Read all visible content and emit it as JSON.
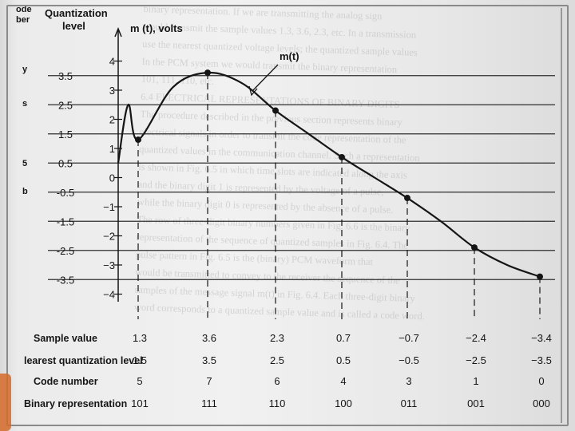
{
  "header": {
    "code_col": [
      "ode",
      "ber"
    ],
    "quant_title": [
      "Quantization",
      "level"
    ],
    "m_axis": "m (t), volts",
    "curve": "m(t)"
  },
  "left_stray": [
    "y",
    "s",
    "5",
    "b"
  ],
  "colors": {
    "ink": "#151515",
    "grid": "#2e2e2e",
    "paper": "#efefef",
    "accent": "#d66a2a"
  },
  "rows": {
    "sample": "Sample value",
    "nearest": "learest quantization level",
    "code": "Code number",
    "binary": "Binary representation"
  },
  "chart_data": {
    "type": "line",
    "quantization_levels": [
      3.5,
      2.5,
      1.5,
      0.5,
      -0.5,
      -1.5,
      -2.5,
      -3.5
    ],
    "level_labels": [
      "3.5",
      "2.5",
      "1.5",
      "0.5",
      "-0.5",
      "-1.5",
      "-2.5",
      "-3.5"
    ],
    "m_ticks": [
      4,
      3,
      2,
      1,
      0,
      -1,
      -2,
      -3,
      -4
    ],
    "m_tick_labels": [
      "4",
      "3",
      "2",
      "1",
      "0",
      "−1",
      "−2",
      "−3",
      "−4"
    ],
    "ylim": [
      -4.5,
      4.5
    ],
    "samples": [
      {
        "t": 1,
        "value": "1.3",
        "v": 1.3,
        "nearest": "1.5",
        "code": "5",
        "binary": "101"
      },
      {
        "t": 2,
        "value": "3.6",
        "v": 3.6,
        "nearest": "3.5",
        "code": "7",
        "binary": "111"
      },
      {
        "t": 3,
        "value": "2.3",
        "v": 2.3,
        "nearest": "2.5",
        "code": "6",
        "binary": "110"
      },
      {
        "t": 4,
        "value": "0.7",
        "v": 0.7,
        "nearest": "0.5",
        "code": "4",
        "binary": "100"
      },
      {
        "t": 5,
        "value": "−0.7",
        "v": -0.7,
        "nearest": "−0.5",
        "code": "3",
        "binary": "011"
      },
      {
        "t": 6,
        "value": "−2.4",
        "v": -2.4,
        "nearest": "−2.5",
        "code": "1",
        "binary": "001"
      },
      {
        "t": 7,
        "value": "−3.4",
        "v": -3.4,
        "nearest": "−3.5",
        "code": "0",
        "binary": "000"
      }
    ],
    "curve": {
      "t": [
        0,
        0.5,
        1,
        1.5,
        2,
        2.5,
        3,
        3.5,
        4,
        4.5,
        5,
        5.5,
        6,
        6.5,
        7
      ],
      "v": [
        0.5,
        2.5,
        1.3,
        3.1,
        3.6,
        3.25,
        2.3,
        1.5,
        0.7,
        0.0,
        -0.7,
        -1.5,
        -2.4,
        -3.0,
        -3.4
      ]
    }
  },
  "ghost_text": [
    "binary representation. If we are transmitting the analog sign",
    "would transmit the sample values 1.3, 3.6, 2.3, etc. In a transmission",
    "use the nearest quantized voltage levels; the quantized sample values",
    "In the PCM system we would transmit the binary representation",
    "101, 111, 110, etc.",
    "",
    "6.4  ELECTRICAL REPRESENTATIONS OF BINARY DIGITS",
    "",
    "The procedure described in the previous section represents binary",
    "electrical signals in order to transmit the code representation of the",
    "quantized values in the communication channel. Such a representation",
    "is shown in Fig. 6.5 in which time slots are indicated along the axis",
    "and the binary digit 1 is represented by the voltage of a pulse,",
    "while the binary digit 0 is represented by the absence of a pulse.",
    "The row of three-digit binary numbers given in Fig. 6.6 is the binary",
    "representation of the sequence of quantized samples in Fig. 6.4. The",
    "pulse pattern in Fig. 6.5 is the (binary) PCM waveform that",
    "would be transmitted to convey to the receiver the sequence of the",
    "samples of the message signal m(t) in Fig. 6.4. Each three-digit binary",
    "word corresponds to a quantized sample value and is called a code word."
  ]
}
